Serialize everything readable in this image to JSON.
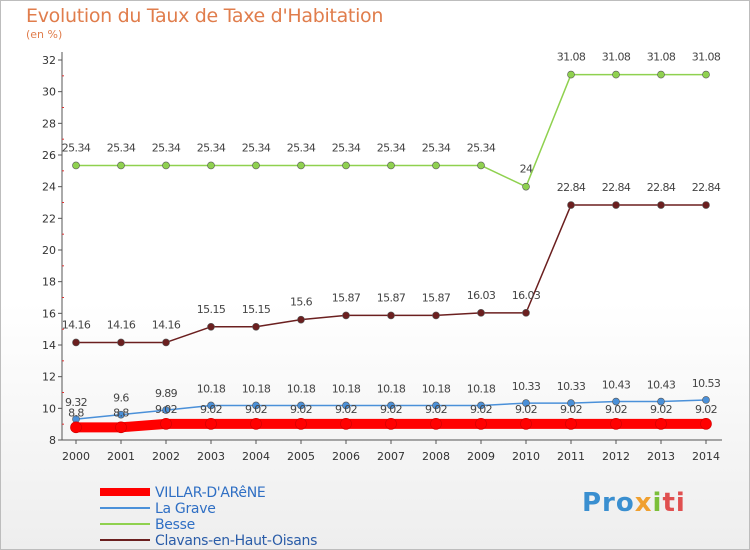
{
  "title": "Evolution du Taux de Taxe d'Habitation",
  "subtitle": "(en %)",
  "logo": {
    "p1": "Pro",
    "p2": "x",
    "p3": "i",
    "p4": "ti"
  },
  "chart_data": {
    "type": "line",
    "title": "Evolution du Taux de Taxe d'Habitation",
    "ylabel": "(en %)",
    "xlabel": "",
    "ylim": [
      8,
      32
    ],
    "y_ticks": [
      8,
      10,
      12,
      14,
      16,
      18,
      20,
      22,
      24,
      26,
      28,
      30,
      32
    ],
    "grid": false,
    "legend": "bottom-left",
    "x": [
      "2000",
      "2001",
      "2002",
      "2003",
      "2004",
      "2005",
      "2006",
      "2007",
      "2008",
      "2009",
      "2010",
      "2011",
      "2012",
      "2013",
      "2014"
    ],
    "series": [
      {
        "name": "VILLAR-D'ARêNE",
        "color": "#ff0000",
        "values": [
          8.8,
          8.8,
          9.02,
          9.02,
          9.02,
          9.02,
          9.02,
          9.02,
          9.02,
          9.02,
          9.02,
          9.02,
          9.02,
          9.02,
          9.02
        ],
        "labels": [
          "8.8",
          "8.8",
          "9.02",
          "9.02",
          "9.02",
          "9.02",
          "9.02",
          "9.02",
          "9.02",
          "9.02",
          "9.02",
          "9.02",
          "9.02",
          "9.02",
          "9.02"
        ]
      },
      {
        "name": "La Grave",
        "color": "#4a90d9",
        "values": [
          9.32,
          9.6,
          9.89,
          10.18,
          10.18,
          10.18,
          10.18,
          10.18,
          10.18,
          10.18,
          10.33,
          10.33,
          10.43,
          10.43,
          10.53
        ],
        "labels": [
          "9.32",
          "9.6",
          "9.89",
          "10.18",
          "10.18",
          "10.18",
          "10.18",
          "10.18",
          "10.18",
          "10.18",
          "10.33",
          "10.33",
          "10.43",
          "10.43",
          "10.53"
        ]
      },
      {
        "name": "Besse",
        "color": "#8fd14f",
        "values": [
          25.34,
          25.34,
          25.34,
          25.34,
          25.34,
          25.34,
          25.34,
          25.34,
          25.34,
          25.34,
          24,
          31.08,
          31.08,
          31.08,
          31.08
        ],
        "labels": [
          "25.34",
          "25.34",
          "25.34",
          "25.34",
          "25.34",
          "25.34",
          "25.34",
          "25.34",
          "25.34",
          "25.34",
          "24",
          "31.08",
          "31.08",
          "31.08",
          "31.08"
        ]
      },
      {
        "name": "Clavans-en-Haut-Oisans",
        "color": "#6b1f1f",
        "values": [
          14.16,
          14.16,
          14.16,
          15.15,
          15.15,
          15.6,
          15.87,
          15.87,
          15.87,
          16.03,
          16.03,
          22.84,
          22.84,
          22.84,
          22.84
        ],
        "labels": [
          "14.16",
          "14.16",
          "14.16",
          "15.15",
          "15.15",
          "15.6",
          "15.87",
          "15.87",
          "15.87",
          "16.03",
          "16.03",
          "22.84",
          "22.84",
          "22.84",
          "22.84"
        ]
      }
    ]
  }
}
